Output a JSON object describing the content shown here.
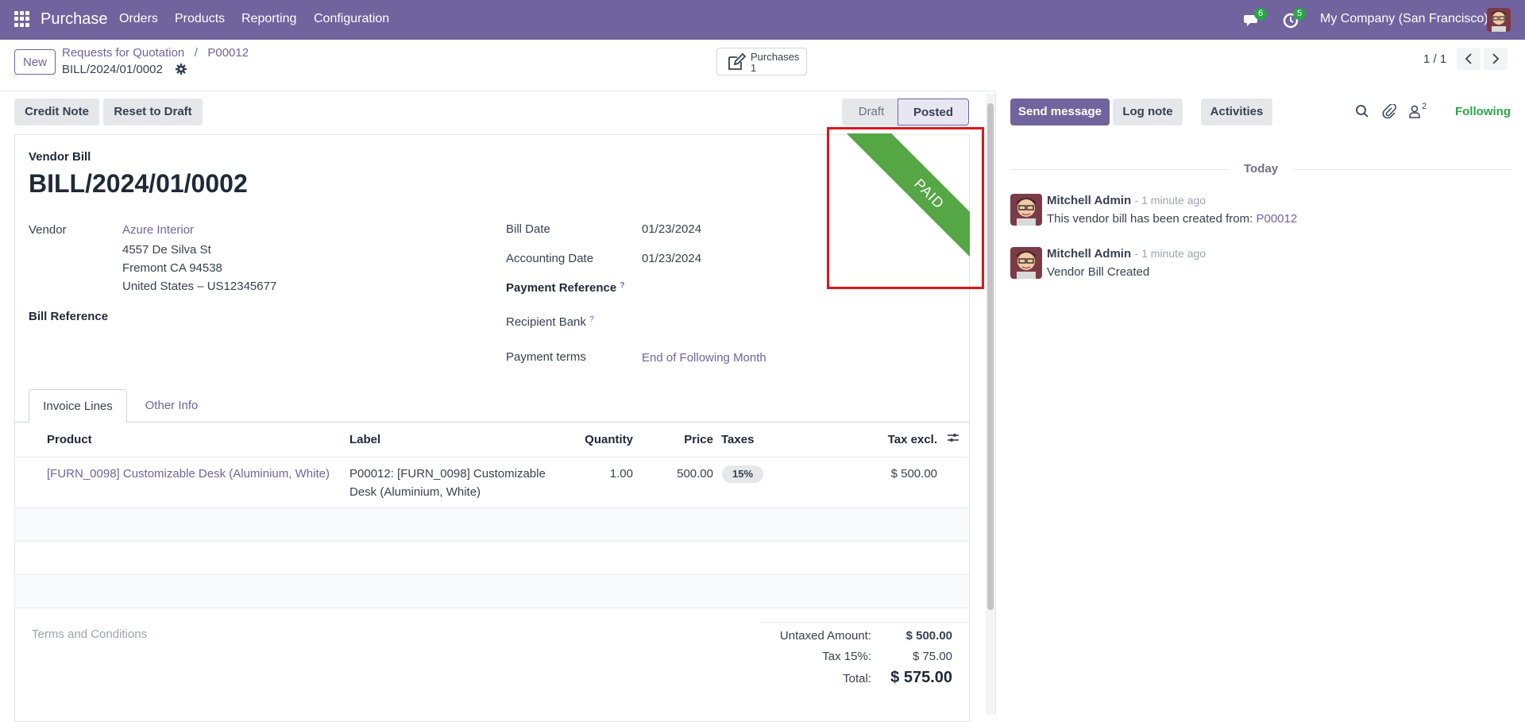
{
  "navbar": {
    "app_name": "Purchase",
    "menu": [
      "Orders",
      "Products",
      "Reporting",
      "Configuration"
    ],
    "messages_count": "6",
    "activities_count": "5",
    "company": "My Company (San Francisco)"
  },
  "control": {
    "new_label": "New",
    "breadcrumb_parent": "Requests for Quotation",
    "breadcrumb_sep": "/",
    "breadcrumb_po": "P00012",
    "record_name": "BILL/2024/01/0002",
    "smart_button_label": "Purchases",
    "smart_button_count": "1",
    "pager": "1 / 1"
  },
  "actions": {
    "credit_note": "Credit Note",
    "reset_to_draft": "Reset to Draft",
    "status_draft": "Draft",
    "status_posted": "Posted"
  },
  "form": {
    "doc_type": "Vendor Bill",
    "doc_name": "BILL/2024/01/0002",
    "ribbon": "PAID",
    "vendor_label": "Vendor",
    "vendor_name": "Azure Interior",
    "vendor_address": [
      "4557 De Silva St",
      "Fremont CA 94538",
      "United States – US12345677"
    ],
    "bill_reference_label": "Bill Reference",
    "bill_date_label": "Bill Date",
    "bill_date": "01/23/2024",
    "accounting_date_label": "Accounting Date",
    "accounting_date": "01/23/2024",
    "payment_reference_label": "Payment Reference",
    "recipient_bank_label": "Recipient Bank",
    "help_marker": "?",
    "payment_terms_label": "Payment terms",
    "payment_terms": "End of Following Month"
  },
  "tabs": [
    "Invoice Lines",
    "Other Info"
  ],
  "lines": {
    "columns": [
      "Product",
      "Label",
      "Quantity",
      "Price",
      "Taxes",
      "Tax excl."
    ],
    "rows": [
      {
        "product": "[FURN_0098] Customizable Desk (Aluminium, White)",
        "label_line1": "P00012: [FURN_0098] Customizable",
        "label_line2": "Desk (Aluminium, White)",
        "quantity": "1.00",
        "price": "500.00",
        "taxes": "15%",
        "subtotal": "$ 500.00"
      }
    ]
  },
  "terms_placeholder": "Terms and Conditions",
  "totals": {
    "untaxed_label": "Untaxed Amount:",
    "untaxed": "$ 500.00",
    "tax_label": "Tax 15%:",
    "tax": "$ 75.00",
    "total_label": "Total:",
    "total": "$ 575.00"
  },
  "chatter": {
    "send_message": "Send message",
    "log_note": "Log note",
    "activities": "Activities",
    "followers_count": "2",
    "following": "Following",
    "today": "Today",
    "messages": [
      {
        "author": "Mitchell Admin",
        "date": "- 1 minute ago",
        "body_prefix": "This vendor bill has been created from: ",
        "body_link": "P00012"
      },
      {
        "author": "Mitchell Admin",
        "date": "- 1 minute ago",
        "body_prefix": "Vendor Bill Created",
        "body_link": ""
      }
    ]
  },
  "colors": {
    "brand": "#71639e",
    "paid_ribbon": "#55a645",
    "highlight": "#e3131b",
    "following": "#28a745"
  }
}
